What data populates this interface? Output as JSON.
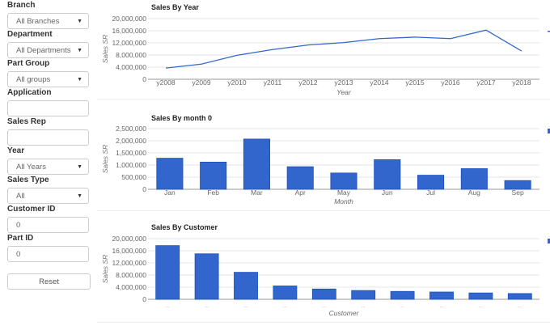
{
  "filters": [
    {
      "label": "Branch",
      "value": "All Branches",
      "type": "select"
    },
    {
      "label": "Department",
      "value": "All Departments",
      "type": "select"
    },
    {
      "label": "Part Group",
      "value": "All groups",
      "type": "select"
    },
    {
      "label": "Application",
      "value": "",
      "type": "input"
    },
    {
      "label": "Sales Rep",
      "value": "",
      "type": "input"
    },
    {
      "label": "Year",
      "value": "All Years",
      "type": "select"
    },
    {
      "label": "Sales Type",
      "value": "All",
      "type": "select"
    },
    {
      "label": "Customer ID",
      "value": "0",
      "type": "input"
    },
    {
      "label": "Part ID",
      "value": "0",
      "type": "input"
    }
  ],
  "reset_label": "Reset",
  "colors": {
    "series": "#3366cc"
  },
  "chart_data": [
    {
      "type": "line",
      "title": "Sales By Year",
      "xlabel": "Year",
      "ylabel": "Sales SR",
      "ylim": [
        0,
        20000000
      ],
      "yticks": [
        "0",
        "4,000,000",
        "8,000,000",
        "12,000,000",
        "16,000,000",
        "20,000,000"
      ],
      "categories": [
        "y2008",
        "y2009",
        "y2010",
        "y2011",
        "y2012",
        "y2013",
        "y2014",
        "y2015",
        "y2016",
        "y2017",
        "y2018"
      ],
      "values": [
        3700000,
        5000000,
        7900000,
        9800000,
        11300000,
        12100000,
        13400000,
        13900000,
        13400000,
        16200000,
        9300000
      ]
    },
    {
      "type": "bar",
      "title": "Sales By month 0",
      "xlabel": "Month",
      "ylabel": "Sales SR",
      "ylim": [
        0,
        2500000
      ],
      "yticks": [
        "0",
        "500,000",
        "1,000,000",
        "1,500,000",
        "2,000,000",
        "2,500,000"
      ],
      "categories": [
        "Jan",
        "Feb",
        "Mar",
        "Apr",
        "May",
        "Jun",
        "Jul",
        "Aug",
        "Sep"
      ],
      "values": [
        1280000,
        1120000,
        2070000,
        930000,
        670000,
        1220000,
        580000,
        850000,
        360000
      ]
    },
    {
      "type": "bar",
      "title": "Sales By Customer",
      "xlabel": "Customer",
      "ylabel": "Sales SR",
      "ylim": [
        0,
        20000000
      ],
      "yticks": [
        "0",
        "4,000,000",
        "8,000,000",
        "12,000,000",
        "16,000,000",
        "20,000,000"
      ],
      "categories": [
        "...",
        "...",
        "...",
        "...",
        "...",
        "...",
        "...",
        "...",
        "...",
        "..."
      ],
      "values": [
        17700000,
        15000000,
        8900000,
        4400000,
        3400000,
        2900000,
        2600000,
        2400000,
        2100000,
        1900000
      ]
    }
  ]
}
